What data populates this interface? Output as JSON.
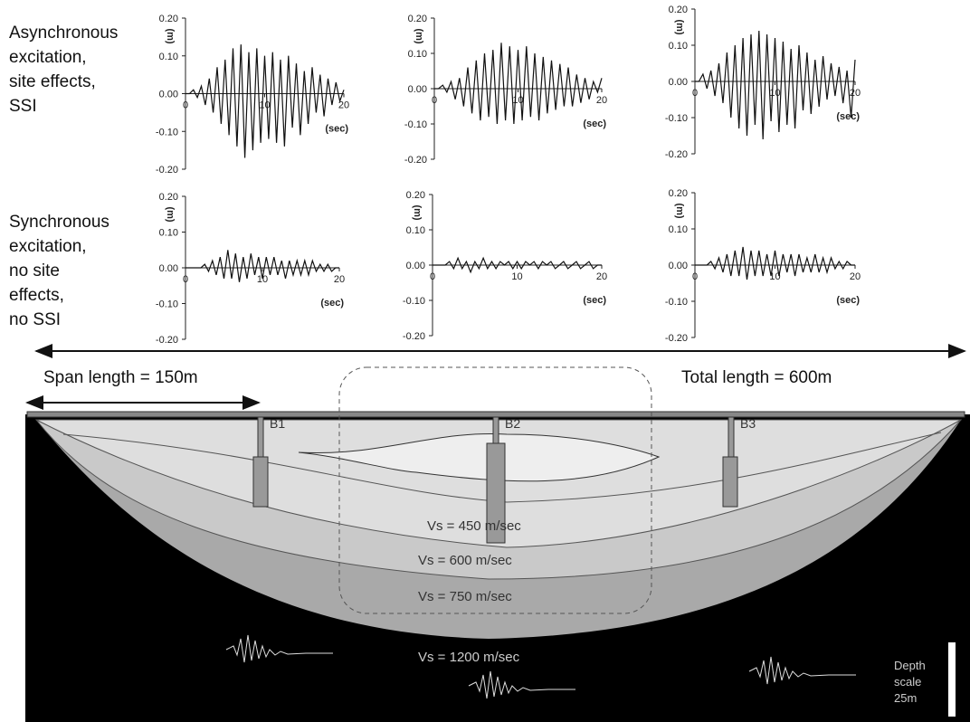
{
  "row_labels": [
    [
      "Asynchronous",
      "excitation,",
      "site effects,",
      "SSI"
    ],
    [
      "Synchronous",
      "excitation,",
      "no site",
      "effects,",
      "no SSI"
    ]
  ],
  "chart_data": [
    {
      "type": "line",
      "ylabel": "(m)",
      "xlabel": "(sec)",
      "xlim": [
        0,
        20
      ],
      "ylim": [
        -0.2,
        0.2
      ],
      "xticks": [
        0,
        10,
        20
      ],
      "yticks": [
        {
          "value": -0.2,
          "label": "-0.20"
        },
        {
          "value": -0.1,
          "label": "-0.10"
        },
        {
          "value": 0,
          "label": "0.00"
        },
        {
          "value": 0.1,
          "label": "0.10"
        },
        {
          "value": 0.2,
          "label": "0.20"
        }
      ],
      "color": "#111111",
      "x": [
        0,
        0.5,
        1,
        1.5,
        2,
        2.5,
        3,
        3.5,
        4,
        4.5,
        5,
        5.5,
        6,
        6.5,
        7,
        7.5,
        8,
        8.5,
        9,
        9.5,
        10,
        10.5,
        11,
        11.5,
        12,
        12.5,
        13,
        13.5,
        14,
        14.5,
        15,
        15.5,
        16,
        16.5,
        17,
        17.5,
        18,
        18.5,
        19,
        19.5,
        20
      ],
      "values": [
        0,
        0,
        0.01,
        -0.01,
        0.02,
        -0.03,
        0.04,
        -0.05,
        0.07,
        -0.08,
        0.09,
        -0.11,
        0.12,
        -0.14,
        0.13,
        -0.17,
        0.11,
        -0.15,
        0.12,
        -0.13,
        0.1,
        -0.12,
        0.11,
        -0.13,
        0.09,
        -0.14,
        0.1,
        -0.09,
        0.08,
        -0.11,
        0.06,
        -0.08,
        0.07,
        -0.05,
        0.05,
        -0.06,
        0.04,
        -0.03,
        0.03,
        -0.02,
        0.01
      ]
    },
    {
      "type": "line",
      "ylabel": "(m)",
      "xlabel": "(sec)",
      "xlim": [
        0,
        20
      ],
      "ylim": [
        -0.2,
        0.2
      ],
      "xticks": [
        0,
        10,
        20
      ],
      "yticks": [
        {
          "value": -0.2,
          "label": "-0.20"
        },
        {
          "value": -0.1,
          "label": "-0.10"
        },
        {
          "value": 0,
          "label": "0.00"
        },
        {
          "value": 0.1,
          "label": "0.10"
        },
        {
          "value": 0.2,
          "label": "0.20"
        }
      ],
      "color": "#111111",
      "x": [
        0,
        0.5,
        1,
        1.5,
        2,
        2.5,
        3,
        3.5,
        4,
        4.5,
        5,
        5.5,
        6,
        6.5,
        7,
        7.5,
        8,
        8.5,
        9,
        9.5,
        10,
        10.5,
        11,
        11.5,
        12,
        12.5,
        13,
        13.5,
        14,
        14.5,
        15,
        15.5,
        16,
        16.5,
        17,
        17.5,
        18,
        18.5,
        19,
        19.5,
        20
      ],
      "values": [
        0,
        0,
        0.01,
        -0.01,
        0.02,
        -0.03,
        0.03,
        -0.05,
        0.06,
        -0.07,
        0.08,
        -0.09,
        0.1,
        -0.08,
        0.11,
        -0.1,
        0.13,
        -0.09,
        0.12,
        -0.1,
        0.11,
        -0.09,
        0.12,
        -0.08,
        0.1,
        -0.09,
        0.09,
        -0.07,
        0.08,
        -0.06,
        0.07,
        -0.05,
        0.06,
        -0.05,
        0.04,
        -0.04,
        0.03,
        -0.03,
        0.02,
        -0.01,
        0.03
      ]
    },
    {
      "type": "line",
      "ylabel": "(m)",
      "xlabel": "(sec)",
      "xlim": [
        0,
        20
      ],
      "ylim": [
        -0.2,
        0.2
      ],
      "xticks": [
        0,
        10,
        20
      ],
      "yticks": [
        {
          "value": -0.2,
          "label": "-0.20"
        },
        {
          "value": -0.1,
          "label": "-0.10"
        },
        {
          "value": 0,
          "label": "0.00"
        },
        {
          "value": 0.1,
          "label": "0.10"
        },
        {
          "value": 0.2,
          "label": "0.20"
        }
      ],
      "color": "#111111",
      "x": [
        0,
        0.5,
        1,
        1.5,
        2,
        2.5,
        3,
        3.5,
        4,
        4.5,
        5,
        5.5,
        6,
        6.5,
        7,
        7.5,
        8,
        8.5,
        9,
        9.5,
        10,
        10.5,
        11,
        11.5,
        12,
        12.5,
        13,
        13.5,
        14,
        14.5,
        15,
        15.5,
        16,
        16.5,
        17,
        17.5,
        18,
        18.5,
        19,
        19.5,
        20
      ],
      "values": [
        0,
        0,
        0.02,
        -0.02,
        0.03,
        -0.04,
        0.05,
        -0.06,
        0.08,
        -0.1,
        0.1,
        -0.13,
        0.12,
        -0.15,
        0.13,
        -0.12,
        0.14,
        -0.16,
        0.13,
        -0.11,
        0.12,
        -0.14,
        0.11,
        -0.12,
        0.09,
        -0.13,
        0.1,
        -0.08,
        0.08,
        -0.09,
        0.06,
        -0.07,
        0.07,
        -0.05,
        0.05,
        -0.04,
        0.04,
        -0.06,
        0.03,
        -0.1,
        0.06
      ]
    },
    {
      "type": "line",
      "ylabel": "(m)",
      "xlabel": "(sec)",
      "xlim": [
        0,
        20
      ],
      "ylim": [
        -0.2,
        0.2
      ],
      "xticks": [
        0,
        10,
        20
      ],
      "yticks": [
        {
          "value": -0.2,
          "label": "-0.20"
        },
        {
          "value": -0.1,
          "label": "-0.10"
        },
        {
          "value": 0,
          "label": "0.00"
        },
        {
          "value": 0.1,
          "label": "0.10"
        },
        {
          "value": 0.2,
          "label": "0.20"
        }
      ],
      "color": "#111111",
      "x": [
        0,
        0.5,
        1,
        1.5,
        2,
        2.5,
        3,
        3.5,
        4,
        4.5,
        5,
        5.5,
        6,
        6.5,
        7,
        7.5,
        8,
        8.5,
        9,
        9.5,
        10,
        10.5,
        11,
        11.5,
        12,
        12.5,
        13,
        13.5,
        14,
        14.5,
        15,
        15.5,
        16,
        16.5,
        17,
        17.5,
        18,
        18.5,
        19,
        19.5,
        20
      ],
      "values": [
        0,
        0,
        0,
        0,
        0,
        0.01,
        -0.01,
        0.02,
        -0.02,
        0.03,
        -0.03,
        0.05,
        -0.03,
        0.04,
        -0.04,
        0.03,
        -0.03,
        0.04,
        -0.02,
        0.03,
        -0.03,
        0.03,
        -0.02,
        0.03,
        -0.02,
        0.02,
        -0.03,
        0.02,
        -0.02,
        0.02,
        -0.02,
        0.02,
        -0.02,
        0.02,
        -0.01,
        0.01,
        -0.01,
        0.01,
        -0.01,
        0,
        0
      ]
    },
    {
      "type": "line",
      "ylabel": "(m)",
      "xlabel": "(sec)",
      "xlim": [
        0,
        20
      ],
      "ylim": [
        -0.2,
        0.2
      ],
      "xticks": [
        0,
        10,
        20
      ],
      "yticks": [
        {
          "value": -0.2,
          "label": "-0.20"
        },
        {
          "value": -0.1,
          "label": "-0.10"
        },
        {
          "value": 0,
          "label": "0.00"
        },
        {
          "value": 0.1,
          "label": "0.10"
        },
        {
          "value": 0.2,
          "label": "0.20"
        }
      ],
      "color": "#111111",
      "x": [
        0,
        0.5,
        1,
        1.5,
        2,
        2.5,
        3,
        3.5,
        4,
        4.5,
        5,
        5.5,
        6,
        6.5,
        7,
        7.5,
        8,
        8.5,
        9,
        9.5,
        10,
        10.5,
        11,
        11.5,
        12,
        12.5,
        13,
        13.5,
        14,
        14.5,
        15,
        15.5,
        16,
        16.5,
        17,
        17.5,
        18,
        18.5,
        19,
        19.5,
        20
      ],
      "values": [
        0,
        0,
        0,
        0,
        0.01,
        -0.01,
        0.02,
        -0.01,
        0.01,
        -0.02,
        0.01,
        -0.01,
        0.02,
        -0.01,
        0.01,
        -0.01,
        0.01,
        0,
        0.01,
        -0.01,
        0.01,
        -0.01,
        0.01,
        0,
        0.01,
        -0.01,
        0.01,
        0,
        0.01,
        -0.01,
        0,
        0.01,
        -0.01,
        0,
        0.01,
        -0.01,
        0,
        0.01,
        -0.01,
        0,
        0
      ]
    },
    {
      "type": "line",
      "ylabel": "(m)",
      "xlabel": "(sec)",
      "xlim": [
        0,
        20
      ],
      "ylim": [
        -0.2,
        0.2
      ],
      "xticks": [
        0,
        10,
        20
      ],
      "yticks": [
        {
          "value": -0.2,
          "label": "-0.20"
        },
        {
          "value": -0.1,
          "label": "-0.10"
        },
        {
          "value": 0,
          "label": "0.00"
        },
        {
          "value": 0.1,
          "label": "0.10"
        },
        {
          "value": 0.2,
          "label": "0.20"
        }
      ],
      "color": "#111111",
      "x": [
        0,
        0.5,
        1,
        1.5,
        2,
        2.5,
        3,
        3.5,
        4,
        4.5,
        5,
        5.5,
        6,
        6.5,
        7,
        7.5,
        8,
        8.5,
        9,
        9.5,
        10,
        10.5,
        11,
        11.5,
        12,
        12.5,
        13,
        13.5,
        14,
        14.5,
        15,
        15.5,
        16,
        16.5,
        17,
        17.5,
        18,
        18.5,
        19,
        19.5,
        20
      ],
      "values": [
        0,
        0,
        0,
        0,
        0.01,
        -0.01,
        0.02,
        -0.02,
        0.03,
        -0.03,
        0.04,
        -0.03,
        0.05,
        -0.04,
        0.04,
        -0.03,
        0.04,
        -0.03,
        0.03,
        -0.03,
        0.04,
        -0.03,
        0.03,
        -0.02,
        0.03,
        -0.03,
        0.03,
        -0.02,
        0.02,
        -0.02,
        0.03,
        -0.02,
        0.02,
        -0.02,
        0.02,
        -0.01,
        0.01,
        -0.01,
        0.01,
        0,
        0
      ]
    }
  ],
  "diagram": {
    "span_length": "Span length = 150m",
    "total_length": "Total length = 600m",
    "piers": [
      "B1",
      "B2",
      "B3"
    ],
    "layers": [
      "Vs = 450 m/sec",
      "Vs = 600 m/sec",
      "Vs = 750 m/sec",
      "Vs = 1200 m/sec"
    ],
    "depth_scale": [
      "Depth",
      "scale",
      "25m"
    ]
  }
}
